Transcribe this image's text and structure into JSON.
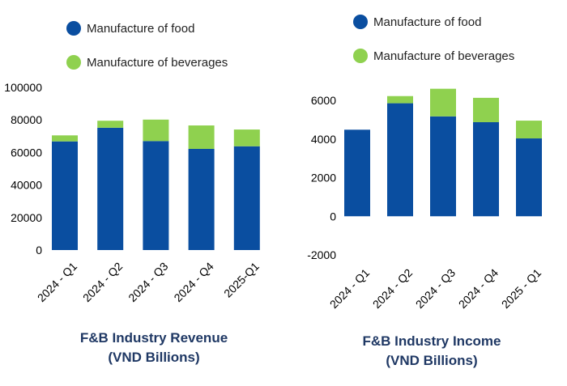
{
  "colors": {
    "food": "#0a4ea0",
    "beverages": "#8fd14f",
    "axis_text": "#000000",
    "title": "#1f3864"
  },
  "chart_data": [
    {
      "type": "bar",
      "stacked": true,
      "title": [
        "F&B Industry Revenue",
        "(VND Billions)"
      ],
      "categories": [
        "2024 - Q1",
        "2024 - Q2",
        "2024 - Q3",
        "2024 - Q4",
        "2025-Q1"
      ],
      "series": [
        {
          "name": "Manufacture of food",
          "values": [
            66800,
            75200,
            67000,
            62200,
            63800
          ]
        },
        {
          "name": "Manufacture of beverages",
          "values": [
            3700,
            4300,
            13200,
            14400,
            10300
          ]
        }
      ],
      "ylim": [
        0,
        100000
      ],
      "yticks": [
        "0",
        "20000",
        "40000",
        "60000",
        "80000",
        "100000"
      ],
      "ytick_values": [
        0,
        20000,
        40000,
        60000,
        80000,
        100000
      ],
      "legend_position": "top-left",
      "grid": false
    },
    {
      "type": "bar",
      "stacked": true,
      "title": [
        "F&B Industry Income",
        "(VND Billions)"
      ],
      "categories": [
        "2024 - Q1",
        "2024 - Q2",
        "2024 - Q3",
        "2024 - Q4",
        "2025 - Q1"
      ],
      "series": [
        {
          "name": "Manufacture of food",
          "values": [
            4480,
            5850,
            5170,
            4870,
            4030
          ]
        },
        {
          "name": "Manufacture of beverages",
          "values": [
            0,
            370,
            1430,
            1260,
            920
          ]
        }
      ],
      "ylim": [
        -2000,
        6000
      ],
      "yticks": [
        "-2000",
        "0",
        "2000",
        "4000",
        "6000"
      ],
      "ytick_values": [
        -2000,
        0,
        2000,
        4000,
        6000
      ],
      "legend_position": "top-left",
      "grid": false
    }
  ]
}
